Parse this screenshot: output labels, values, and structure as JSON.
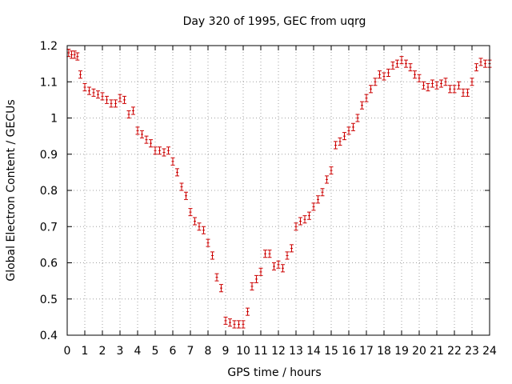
{
  "chart_data": {
    "type": "scatter",
    "title": "Day 320 of 1995, GEC from uqrg",
    "xlabel": "GPS time / hours",
    "ylabel": "Global Electron Content / GECUs",
    "xlim": [
      0,
      24
    ],
    "ylim": [
      0.4,
      1.2
    ],
    "grid": true,
    "marker_color": "#cc0000",
    "x_ticks": [
      0,
      1,
      2,
      3,
      4,
      5,
      6,
      7,
      8,
      9,
      10,
      11,
      12,
      13,
      14,
      15,
      16,
      17,
      18,
      19,
      20,
      21,
      22,
      23,
      24
    ],
    "x_tick_labels": [
      "0",
      "1",
      "2",
      "3",
      "4",
      "5",
      "6",
      "7",
      "8",
      "9",
      "10",
      "11",
      "12",
      "13",
      "14",
      "15",
      "16",
      "17",
      "18",
      "19",
      "20",
      "21",
      "22",
      "23",
      "24"
    ],
    "y_ticks": [
      0.4,
      0.5,
      0.6,
      0.7,
      0.8,
      0.9,
      1.0,
      1.1,
      1.2
    ],
    "y_tick_labels": [
      "0.4",
      "0.5",
      "0.6",
      "0.7",
      "0.8",
      "0.9",
      "1",
      "1.1",
      "1.2"
    ],
    "error": 0.01,
    "series": [
      {
        "name": "GEC",
        "x": [
          0.083,
          0.25,
          0.417,
          0.583,
          0.75,
          1.0,
          1.25,
          1.5,
          1.75,
          2.0,
          2.25,
          2.5,
          2.75,
          3.0,
          3.25,
          3.5,
          3.75,
          4.0,
          4.25,
          4.5,
          4.75,
          5.0,
          5.25,
          5.5,
          5.75,
          6.0,
          6.25,
          6.5,
          6.75,
          7.0,
          7.25,
          7.5,
          7.75,
          8.0,
          8.25,
          8.5,
          8.75,
          9.0,
          9.25,
          9.5,
          9.75,
          10.0,
          10.25,
          10.5,
          10.75,
          11.0,
          11.25,
          11.5,
          11.75,
          12.0,
          12.25,
          12.5,
          12.75,
          13.0,
          13.25,
          13.5,
          13.75,
          14.0,
          14.25,
          14.5,
          14.75,
          15.0,
          15.25,
          15.5,
          15.75,
          16.0,
          16.25,
          16.5,
          16.75,
          17.0,
          17.25,
          17.5,
          17.75,
          18.0,
          18.25,
          18.5,
          18.75,
          19.0,
          19.25,
          19.5,
          19.75,
          20.0,
          20.25,
          20.5,
          20.75,
          21.0,
          21.25,
          21.5,
          21.75,
          22.0,
          22.25,
          22.5,
          22.75,
          23.0,
          23.25,
          23.5,
          23.75,
          24.0
        ],
        "y": [
          1.18,
          1.175,
          1.175,
          1.17,
          1.12,
          1.085,
          1.075,
          1.07,
          1.065,
          1.06,
          1.05,
          1.04,
          1.04,
          1.055,
          1.05,
          1.01,
          1.02,
          0.965,
          0.955,
          0.94,
          0.93,
          0.91,
          0.91,
          0.905,
          0.91,
          0.88,
          0.85,
          0.81,
          0.785,
          0.74,
          0.715,
          0.7,
          0.69,
          0.655,
          0.62,
          0.56,
          0.53,
          0.44,
          0.435,
          0.43,
          0.43,
          0.43,
          0.465,
          0.535,
          0.555,
          0.575,
          0.625,
          0.625,
          0.59,
          0.595,
          0.585,
          0.62,
          0.64,
          0.7,
          0.715,
          0.72,
          0.73,
          0.755,
          0.775,
          0.795,
          0.83,
          0.855,
          0.925,
          0.935,
          0.95,
          0.965,
          0.975,
          1.0,
          1.035,
          1.055,
          1.08,
          1.1,
          1.12,
          1.115,
          1.125,
          1.145,
          1.15,
          1.16,
          1.15,
          1.14,
          1.12,
          1.11,
          1.09,
          1.085,
          1.095,
          1.09,
          1.095,
          1.1,
          1.08,
          1.08,
          1.09,
          1.07,
          1.07,
          1.1,
          1.14,
          1.155,
          1.15,
          1.15
        ]
      }
    ]
  }
}
